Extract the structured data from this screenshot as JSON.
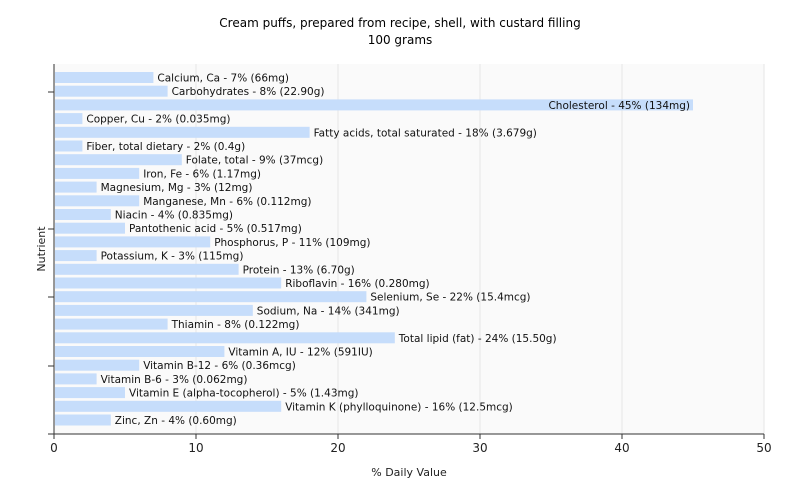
{
  "chart_data": {
    "type": "bar",
    "orientation": "horizontal",
    "title": "Cream puffs, prepared from recipe, shell, with custard filling",
    "subtitle": "100 grams",
    "xlabel": "% Daily Value",
    "ylabel": "Nutrient",
    "xlim": [
      0,
      50
    ],
    "xticks": [
      0,
      10,
      20,
      30,
      40,
      50
    ],
    "grid": true,
    "colors": {
      "bar": "#c6ddfb",
      "grid": "#e6e6e6",
      "axis": "#333333",
      "plot_bg": "#fafafa"
    },
    "categories": [
      "Calcium, Ca",
      "Carbohydrates",
      "Cholesterol",
      "Copper, Cu",
      "Fatty acids, total saturated",
      "Fiber, total dietary",
      "Folate, total",
      "Iron, Fe",
      "Magnesium, Mg",
      "Manganese, Mn",
      "Niacin",
      "Pantothenic acid",
      "Phosphorus, P",
      "Potassium, K",
      "Protein",
      "Riboflavin",
      "Selenium, Se",
      "Sodium, Na",
      "Thiamin",
      "Total lipid (fat)",
      "Vitamin A, IU",
      "Vitamin B-12",
      "Vitamin B-6",
      "Vitamin E (alpha-tocopherol)",
      "Vitamin K (phylloquinone)",
      "Zinc, Zn"
    ],
    "values": [
      7,
      8,
      45,
      2,
      18,
      2,
      9,
      6,
      3,
      6,
      4,
      5,
      11,
      3,
      13,
      16,
      22,
      14,
      8,
      24,
      12,
      6,
      3,
      5,
      16,
      4
    ],
    "labels": [
      "Calcium, Ca - 7% (66mg)",
      "Carbohydrates - 8% (22.90g)",
      "Cholesterol - 45% (134mg)",
      "Copper, Cu - 2% (0.035mg)",
      "Fatty acids, total saturated - 18% (3.679g)",
      "Fiber, total dietary - 2% (0.4g)",
      "Folate, total - 9% (37mcg)",
      "Iron, Fe - 6% (1.17mg)",
      "Magnesium, Mg - 3% (12mg)",
      "Manganese, Mn - 6% (0.112mg)",
      "Niacin - 4% (0.835mg)",
      "Pantothenic acid - 5% (0.517mg)",
      "Phosphorus, P - 11% (109mg)",
      "Potassium, K - 3% (115mg)",
      "Protein - 13% (6.70g)",
      "Riboflavin - 16% (0.280mg)",
      "Selenium, Se - 22% (15.4mcg)",
      "Sodium, Na - 14% (341mg)",
      "Thiamin - 8% (0.122mg)",
      "Total lipid (fat) - 24% (15.50g)",
      "Vitamin A, IU - 12% (591IU)",
      "Vitamin B-12 - 6% (0.36mcg)",
      "Vitamin B-6 - 3% (0.062mg)",
      "Vitamin E (alpha-tocopherol) - 5% (1.43mg)",
      "Vitamin K (phylloquinone) - 16% (12.5mcg)",
      "Zinc, Zn - 4% (0.60mg)"
    ]
  }
}
